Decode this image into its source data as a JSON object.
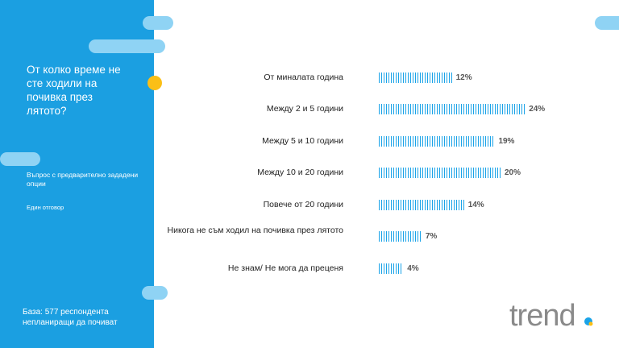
{
  "sidebar": {
    "question": "От колко време не сте ходили на почивка през лятото?",
    "question_type": "Въпрос с предварително зададени опции",
    "answer_mode": "Един отговор",
    "base": "База: 577 респондента непланиращи да почиват"
  },
  "logo": {
    "text": "trend"
  },
  "colors": {
    "sidebar": "#1b9fe1",
    "bar": "#1aa3e8",
    "accent_dot": "#fbbf16",
    "pill": "#8fd3f4"
  },
  "chart_data": {
    "type": "bar",
    "orientation": "horizontal",
    "categories": [
      "От миналата година",
      "Между 2 и 5 години",
      "Между 5 и 10 години",
      "Между 10 и 20 години",
      "Повече от 20 години",
      "Никога не съм ходил на почивка през лятото",
      "Не знам/ Не мога да преценя"
    ],
    "values": [
      12,
      24,
      19,
      20,
      14,
      7,
      4
    ],
    "value_labels": [
      "12%",
      "24%",
      "19%",
      "20%",
      "14%",
      "7%",
      "4%"
    ],
    "unit": "%"
  }
}
